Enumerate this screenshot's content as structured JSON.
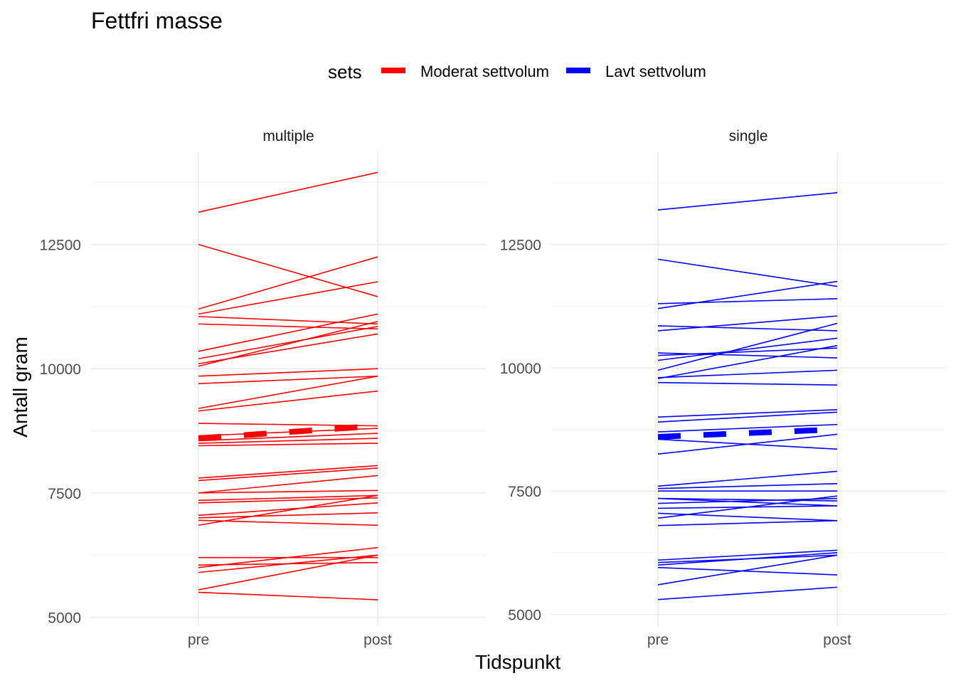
{
  "chart_data": {
    "type": "line",
    "title": "Fettfri masse",
    "xlabel": "Tidspunkt",
    "ylabel": "Antall gram",
    "categories": [
      "pre",
      "post"
    ],
    "legend": {
      "title": "sets",
      "position": "top",
      "entries": [
        {
          "label": "Moderat settvolum",
          "color": "#ff0000"
        },
        {
          "label": "Lavt settvolum",
          "color": "#0000ff"
        }
      ]
    },
    "grid": true,
    "panels": [
      {
        "strip": "multiple",
        "color": "#ff0000",
        "ylim": [
          4950,
          14250
        ],
        "yticks": [
          "5000",
          "7500",
          "10000",
          "12500"
        ],
        "mean": {
          "pre": 8600,
          "post": 8850
        },
        "series": [
          {
            "pre": 13150,
            "post": 13950
          },
          {
            "pre": 12500,
            "post": 11450
          },
          {
            "pre": 11200,
            "post": 12250
          },
          {
            "pre": 11100,
            "post": 11750
          },
          {
            "pre": 11050,
            "post": 10900
          },
          {
            "pre": 10900,
            "post": 10800
          },
          {
            "pre": 10350,
            "post": 11100
          },
          {
            "pre": 10200,
            "post": 10850
          },
          {
            "pre": 10100,
            "post": 10700
          },
          {
            "pre": 10050,
            "post": 10950
          },
          {
            "pre": 9850,
            "post": 10000
          },
          {
            "pre": 9700,
            "post": 9850
          },
          {
            "pre": 9200,
            "post": 9850
          },
          {
            "pre": 9150,
            "post": 9550
          },
          {
            "pre": 8900,
            "post": 8850
          },
          {
            "pre": 8650,
            "post": 8800
          },
          {
            "pre": 8550,
            "post": 8700
          },
          {
            "pre": 8500,
            "post": 8600
          },
          {
            "pre": 8450,
            "post": 8500
          },
          {
            "pre": 7800,
            "post": 8050
          },
          {
            "pre": 7750,
            "post": 8000
          },
          {
            "pre": 7500,
            "post": 7850
          },
          {
            "pre": 7500,
            "post": 7550
          },
          {
            "pre": 7350,
            "post": 7450
          },
          {
            "pre": 7300,
            "post": 7400
          },
          {
            "pre": 7050,
            "post": 7300
          },
          {
            "pre": 7000,
            "post": 7100
          },
          {
            "pre": 6950,
            "post": 6850
          },
          {
            "pre": 6850,
            "post": 7450
          },
          {
            "pre": 6200,
            "post": 6200
          },
          {
            "pre": 6000,
            "post": 6400
          },
          {
            "pre": 5900,
            "post": 6250
          },
          {
            "pre": 5550,
            "post": 6250
          },
          {
            "pre": 5500,
            "post": 5350
          },
          {
            "pre": 6050,
            "post": 6100
          }
        ]
      },
      {
        "strip": "single",
        "color": "#0000ff",
        "ylim": [
          4950,
          14250
        ],
        "yticks": [
          "5000",
          "7500",
          "10000",
          "12500"
        ],
        "mean": {
          "pre": 8600,
          "post": 8750
        },
        "series": [
          {
            "pre": 13200,
            "post": 13550
          },
          {
            "pre": 12200,
            "post": 11650
          },
          {
            "pre": 11300,
            "post": 11400
          },
          {
            "pre": 11200,
            "post": 11750
          },
          {
            "pre": 10850,
            "post": 10750
          },
          {
            "pre": 10750,
            "post": 11050
          },
          {
            "pre": 10300,
            "post": 10200
          },
          {
            "pre": 10250,
            "post": 10400
          },
          {
            "pre": 10150,
            "post": 10600
          },
          {
            "pre": 9950,
            "post": 10900
          },
          {
            "pre": 9800,
            "post": 9950
          },
          {
            "pre": 9780,
            "post": 10450
          },
          {
            "pre": 9700,
            "post": 9650
          },
          {
            "pre": 9000,
            "post": 9150
          },
          {
            "pre": 8900,
            "post": 9100
          },
          {
            "pre": 8700,
            "post": 8850
          },
          {
            "pre": 8550,
            "post": 8350
          },
          {
            "pre": 8250,
            "post": 8650
          },
          {
            "pre": 7600,
            "post": 7900
          },
          {
            "pre": 7550,
            "post": 7650
          },
          {
            "pre": 7500,
            "post": 7500
          },
          {
            "pre": 7350,
            "post": 7300
          },
          {
            "pre": 7350,
            "post": 7200
          },
          {
            "pre": 7250,
            "post": 7350
          },
          {
            "pre": 7150,
            "post": 7200
          },
          {
            "pre": 7050,
            "post": 6900
          },
          {
            "pre": 6950,
            "post": 7400
          },
          {
            "pre": 6800,
            "post": 6900
          },
          {
            "pre": 6100,
            "post": 6300
          },
          {
            "pre": 6050,
            "post": 6200
          },
          {
            "pre": 6000,
            "post": 6250
          },
          {
            "pre": 5950,
            "post": 5800
          },
          {
            "pre": 5600,
            "post": 6200
          },
          {
            "pre": 5300,
            "post": 5550
          }
        ]
      }
    ]
  }
}
